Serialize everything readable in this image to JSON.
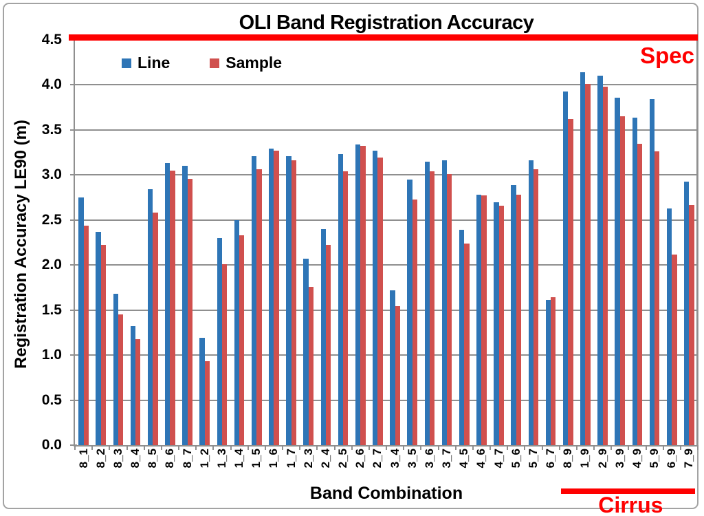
{
  "chart_data": {
    "type": "bar",
    "title": "OLI Band Registration Accuracy",
    "xlabel": "Band Combination",
    "ylabel": "Registration Accuracy LE90 (m)",
    "ylim": [
      0,
      4.5
    ],
    "grid": true,
    "legend_position": "top-left-inside",
    "yticks": [
      "0.0",
      "0.5",
      "1.0",
      "1.5",
      "2.0",
      "2.5",
      "3.0",
      "3.5",
      "4.0",
      "4.5"
    ],
    "categories": [
      "8_1",
      "8_2",
      "8_3",
      "8_4",
      "8_5",
      "8_6",
      "8_7",
      "1_2",
      "1_3",
      "1_4",
      "1_5",
      "1_6",
      "1_7",
      "2_3",
      "2_4",
      "2_5",
      "2_6",
      "2_7",
      "3_4",
      "3_5",
      "3_6",
      "3_7",
      "4_5",
      "4_6",
      "4_7",
      "5_6",
      "5_7",
      "6_7",
      "8_9",
      "1_9",
      "2_9",
      "3_9",
      "4_9",
      "5_9",
      "6_9",
      "7_9"
    ],
    "series": [
      {
        "name": "Line",
        "color": "#2e75b6",
        "values": [
          2.75,
          2.37,
          1.68,
          1.32,
          2.84,
          3.13,
          3.1,
          1.19,
          2.3,
          2.5,
          3.21,
          3.29,
          3.21,
          2.07,
          2.4,
          3.23,
          3.34,
          3.27,
          1.72,
          2.95,
          3.15,
          3.16,
          2.39,
          2.78,
          2.7,
          2.89,
          3.16,
          1.61,
          3.93,
          4.14,
          4.1,
          3.86,
          3.64,
          3.84,
          2.63,
          2.93
        ]
      },
      {
        "name": "Sample",
        "color": "#d0504e",
        "values": [
          2.44,
          2.22,
          1.45,
          1.18,
          2.58,
          3.05,
          2.96,
          0.93,
          2.01,
          2.33,
          3.06,
          3.27,
          3.16,
          1.76,
          2.22,
          3.04,
          3.32,
          3.19,
          1.54,
          2.73,
          3.04,
          3.01,
          2.24,
          2.77,
          2.66,
          2.78,
          3.06,
          1.64,
          3.62,
          4.01,
          3.98,
          3.65,
          3.35,
          3.26,
          2.12,
          2.67
        ]
      }
    ],
    "annotations": {
      "spec_label": "Spec",
      "spec_value": 4.5,
      "cirrus_label": "Cirrus",
      "cirrus_categories": [
        "8_9",
        "1_9",
        "2_9",
        "3_9",
        "4_9",
        "5_9",
        "6_9",
        "7_9"
      ],
      "accent_red": "#fe0000",
      "gridline_color": "#8f8f8f"
    }
  }
}
